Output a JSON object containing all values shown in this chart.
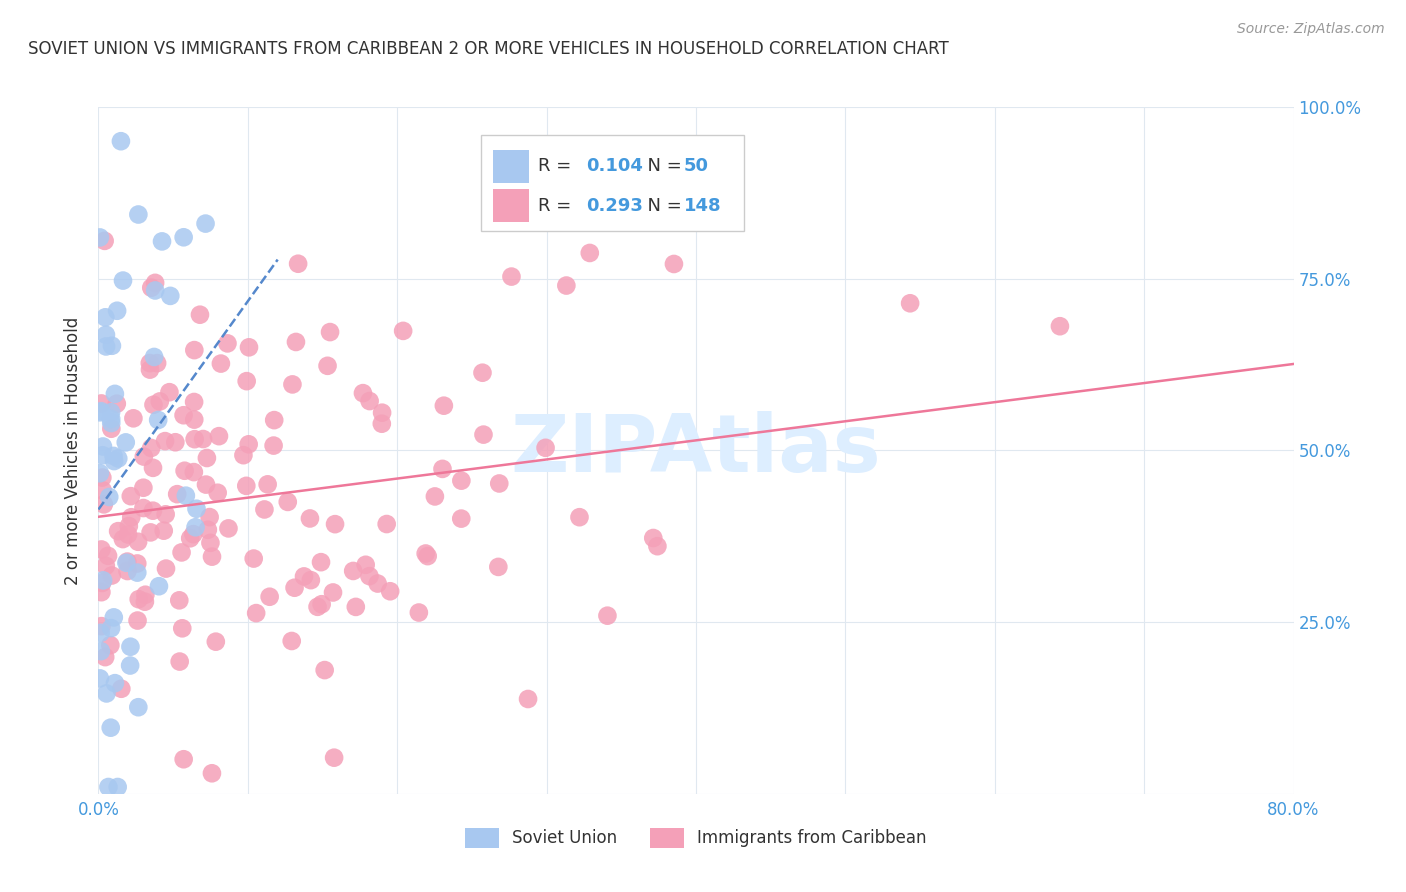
{
  "title": "SOVIET UNION VS IMMIGRANTS FROM CARIBBEAN 2 OR MORE VEHICLES IN HOUSEHOLD CORRELATION CHART",
  "source_text": "Source: ZipAtlas.com",
  "ylabel": "2 or more Vehicles in Household",
  "ytick_labels": [
    "",
    "25.0%",
    "50.0%",
    "75.0%",
    "100.0%"
  ],
  "ytick_values": [
    0.0,
    0.25,
    0.5,
    0.75,
    1.0
  ],
  "legend_label1": "Soviet Union",
  "legend_label2": "Immigrants from Caribbean",
  "r1": 0.104,
  "n1": 50,
  "r2": 0.293,
  "n2": 148,
  "color_blue": "#A8C8F0",
  "color_pink": "#F4A0B8",
  "color_blue_text": "#4499DD",
  "trendline_blue": "#5588CC",
  "trendline_pink": "#EE7799",
  "watermark_color": "#DDEEFF",
  "background_color": "#FFFFFF",
  "xmin": 0.0,
  "xmax": 0.8,
  "ymin": 0.0,
  "ymax": 1.0,
  "grid_color": "#E0E8F0",
  "label_color": "#333333",
  "source_color": "#999999"
}
